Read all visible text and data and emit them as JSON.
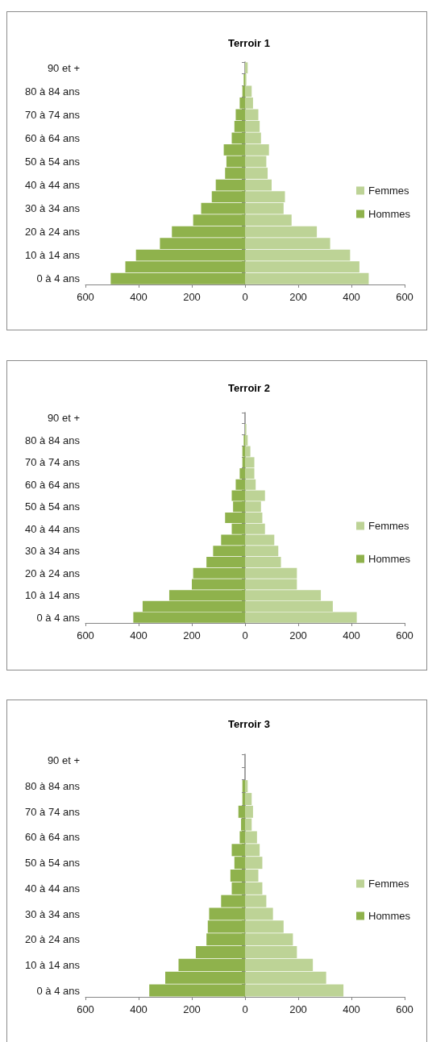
{
  "chart_data": [
    {
      "type": "bar",
      "orientation": "horizontal",
      "stacked": true,
      "title": "Terroir 1",
      "legend": "right",
      "categories": [
        "90 et +",
        null,
        "80 à 84 ans",
        null,
        "70 à 74 ans",
        null,
        "60 à 64 ans",
        null,
        "50 à 54 ans",
        null,
        "40 à 44 ans",
        null,
        "30 à 34 ans",
        null,
        "20 à 24 ans",
        null,
        "10 à 14 ans",
        null,
        "0 à 4 ans"
      ],
      "series": [
        {
          "name": "Femmes",
          "color": "#bdd396",
          "values": [
            10,
            5,
            25,
            30,
            50,
            55,
            60,
            90,
            80,
            85,
            100,
            150,
            145,
            175,
            270,
            320,
            395,
            430,
            465
          ]
        },
        {
          "name": "Hommes",
          "color": "#8fb24c",
          "values": [
            0,
            -5,
            -10,
            -20,
            -35,
            -40,
            -50,
            -80,
            -70,
            -75,
            -110,
            -125,
            -165,
            -195,
            -275,
            -320,
            -410,
            -450,
            -505
          ]
        }
      ],
      "xlim": [
        -600,
        600
      ],
      "xticks": [
        {
          "value": -600,
          "label": "600"
        },
        {
          "value": -400,
          "label": "400"
        },
        {
          "value": -200,
          "label": "200"
        },
        0,
        200,
        400,
        600
      ]
    },
    {
      "type": "bar",
      "orientation": "horizontal",
      "stacked": true,
      "title": "Terroir 2",
      "legend": "right",
      "categories": [
        "90 et +",
        null,
        "80 à 84 ans",
        null,
        "70 à 74 ans",
        null,
        "60 à 64 ans",
        null,
        "50 à 54 ans",
        null,
        "40 à 44 ans",
        null,
        "30 à 34 ans",
        null,
        "20 à 24 ans",
        null,
        "10 à 14 ans",
        null,
        "0 à 4 ans"
      ],
      "series": [
        {
          "name": "Femmes",
          "color": "#bdd396",
          "values": [
            0,
            5,
            10,
            20,
            35,
            35,
            40,
            75,
            60,
            65,
            75,
            110,
            125,
            135,
            195,
            195,
            285,
            330,
            420
          ]
        },
        {
          "name": "Hommes",
          "color": "#8fb24c",
          "values": [
            0,
            0,
            -5,
            -10,
            -10,
            -20,
            -35,
            -50,
            -45,
            -75,
            -50,
            -90,
            -120,
            -145,
            -195,
            -200,
            -285,
            -385,
            -420
          ]
        }
      ],
      "xlim": [
        -600,
        600
      ],
      "xticks": [
        {
          "value": -600,
          "label": "600"
        },
        {
          "value": -400,
          "label": "400"
        },
        {
          "value": -200,
          "label": "200"
        },
        0,
        200,
        400,
        600
      ]
    },
    {
      "type": "bar",
      "orientation": "horizontal",
      "stacked": true,
      "title": "Terroir 3",
      "legend": "right",
      "categories": [
        "90 et +",
        null,
        "80 à 84 ans",
        null,
        "70 à 74 ans",
        null,
        "60 à 64 ans",
        null,
        "50 à 54 ans",
        null,
        "40 à 44 ans",
        null,
        "30 à 34 ans",
        null,
        "20 à 24 ans",
        null,
        "10 à 14 ans",
        null,
        "0 à 4 ans"
      ],
      "series": [
        {
          "name": "Femmes",
          "color": "#bdd396",
          "values": [
            0,
            0,
            10,
            25,
            30,
            25,
            45,
            55,
            65,
            50,
            65,
            80,
            105,
            145,
            180,
            195,
            255,
            305,
            370
          ]
        },
        {
          "name": "Hommes",
          "color": "#8fb24c",
          "values": [
            0,
            0,
            -10,
            -10,
            -25,
            -15,
            -20,
            -50,
            -40,
            -55,
            -50,
            -90,
            -135,
            -140,
            -145,
            -185,
            -250,
            -300,
            -360
          ]
        }
      ],
      "xlim": [
        -600,
        600
      ],
      "xticks": [
        {
          "value": -600,
          "label": "600"
        },
        {
          "value": -400,
          "label": "400"
        },
        {
          "value": -200,
          "label": "200"
        },
        0,
        200,
        400,
        600
      ]
    }
  ]
}
